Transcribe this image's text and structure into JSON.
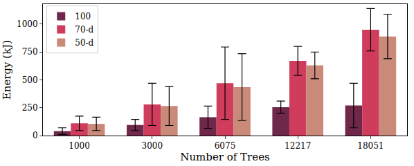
{
  "chart_data": {
    "type": "bar",
    "x_label": "Number of Trees",
    "y_label": "Energy (kJ)",
    "categories": [
      "1000",
      "3000",
      "6075",
      "12217",
      "18051"
    ],
    "series": [
      {
        "name": "100",
        "color": "#70284a",
        "values": [
          40,
          95,
          165,
          255,
          270
        ],
        "error": [
          30,
          50,
          100,
          55,
          200
        ]
      },
      {
        "name": "70-d",
        "color": "#d03c5c",
        "values": [
          110,
          280,
          470,
          670,
          950
        ],
        "error": [
          65,
          190,
          325,
          130,
          190
        ]
      },
      {
        "name": "50-d",
        "color": "#c98a7a",
        "values": [
          105,
          265,
          435,
          630,
          890
        ],
        "error": [
          60,
          175,
          300,
          120,
          200
        ]
      }
    ],
    "ylim": [
      0,
      1180
    ],
    "yticks": [
      0,
      250,
      500,
      750,
      1000
    ],
    "grid": false,
    "legend": "top-left"
  }
}
